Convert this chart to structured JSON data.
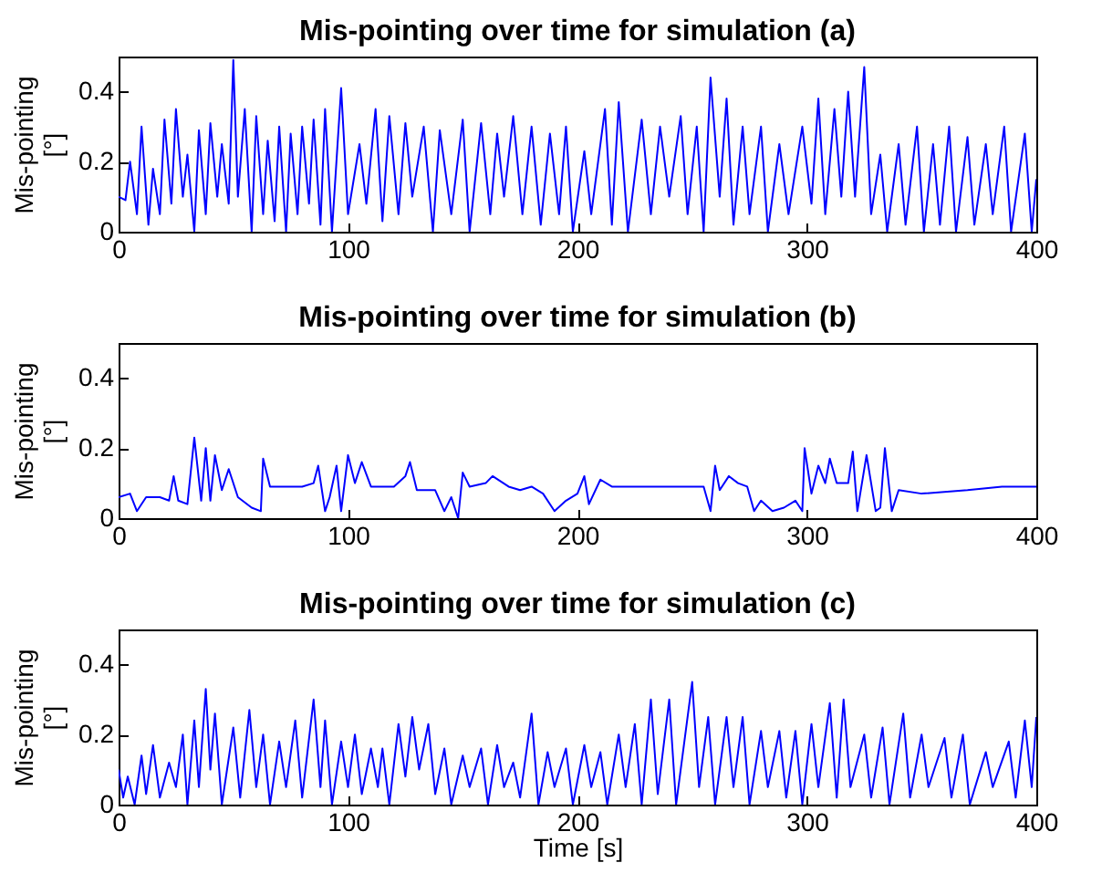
{
  "chart_data": [
    {
      "type": "line",
      "title": "Mis-pointing over time  for simulation (a)",
      "ylabel": "Mis-pointing [°]",
      "xlim": [
        0,
        400
      ],
      "xticks": [
        0,
        100,
        200,
        300,
        400
      ],
      "ylim": [
        0,
        0.5
      ],
      "yticks": [
        0,
        0.2,
        0.4
      ],
      "grid": false,
      "series": [
        {
          "color": "#0000ff",
          "x": [
            0,
            3,
            5,
            8,
            10,
            13,
            15,
            18,
            20,
            23,
            25,
            28,
            30,
            33,
            35,
            38,
            40,
            43,
            45,
            48,
            50,
            52,
            55,
            58,
            60,
            63,
            65,
            68,
            70,
            73,
            75,
            78,
            80,
            83,
            85,
            88,
            90,
            93,
            97,
            100,
            105,
            108,
            112,
            115,
            118,
            122,
            125,
            128,
            133,
            137,
            140,
            145,
            150,
            153,
            158,
            162,
            165,
            168,
            172,
            176,
            180,
            184,
            188,
            192,
            195,
            198,
            203,
            206,
            212,
            215,
            218,
            222,
            228,
            232,
            236,
            240,
            245,
            248,
            252,
            255,
            258,
            262,
            265,
            268,
            272,
            275,
            280,
            283,
            288,
            292,
            298,
            302,
            305,
            308,
            312,
            315,
            318,
            321,
            325,
            328,
            332,
            335,
            340,
            343,
            348,
            351,
            355,
            358,
            362,
            365,
            370,
            373,
            378,
            381,
            386,
            389,
            395,
            398,
            400
          ],
          "values": [
            0.1,
            0.09,
            0.2,
            0.05,
            0.3,
            0.02,
            0.18,
            0.05,
            0.32,
            0.08,
            0.35,
            0.1,
            0.22,
            0,
            0.29,
            0.05,
            0.31,
            0.1,
            0.25,
            0.08,
            0.49,
            0.1,
            0.35,
            0,
            0.33,
            0.05,
            0.26,
            0.03,
            0.3,
            0,
            0.28,
            0.05,
            0.3,
            0.08,
            0.32,
            0.02,
            0.35,
            0,
            0.41,
            0.05,
            0.25,
            0.08,
            0.35,
            0.03,
            0.33,
            0.05,
            0.31,
            0.1,
            0.3,
            0,
            0.29,
            0.05,
            0.32,
            0,
            0.31,
            0.05,
            0.28,
            0.1,
            0.33,
            0.05,
            0.3,
            0.02,
            0.28,
            0.05,
            0.3,
            0,
            0.23,
            0.05,
            0.35,
            0.02,
            0.37,
            0,
            0.32,
            0.05,
            0.3,
            0.1,
            0.33,
            0.05,
            0.3,
            0,
            0.44,
            0.1,
            0.38,
            0.02,
            0.3,
            0.05,
            0.3,
            0,
            0.25,
            0.05,
            0.3,
            0.08,
            0.38,
            0.05,
            0.35,
            0.1,
            0.4,
            0.1,
            0.47,
            0.05,
            0.22,
            0,
            0.25,
            0.02,
            0.3,
            0,
            0.25,
            0.02,
            0.3,
            0,
            0.27,
            0.02,
            0.25,
            0.05,
            0.3,
            0,
            0.28,
            0,
            0.15
          ]
        }
      ]
    },
    {
      "type": "line",
      "title": "Mis-pointing over time  for simulation (b)",
      "ylabel": "Mis-pointing [°]",
      "xlim": [
        0,
        400
      ],
      "xticks": [
        0,
        100,
        200,
        300,
        400
      ],
      "ylim": [
        0,
        0.5
      ],
      "yticks": [
        0,
        0.2,
        0.4
      ],
      "grid": false,
      "series": [
        {
          "color": "#0000ff",
          "x": [
            0,
            5,
            8,
            12,
            18,
            22,
            24,
            26,
            30,
            33,
            36,
            38,
            40,
            42,
            45,
            48,
            52,
            58,
            62,
            63,
            66,
            70,
            80,
            85,
            87,
            90,
            92,
            95,
            97,
            100,
            103,
            106,
            110,
            120,
            125,
            127,
            130,
            138,
            142,
            145,
            148,
            150,
            153,
            160,
            163,
            170,
            175,
            180,
            185,
            190,
            195,
            200,
            203,
            205,
            210,
            215,
            225,
            240,
            255,
            258,
            260,
            262,
            266,
            270,
            274,
            277,
            280,
            285,
            290,
            295,
            298,
            299,
            302,
            305,
            308,
            310,
            313,
            318,
            320,
            322,
            326,
            330,
            332,
            334,
            337,
            340,
            350,
            370,
            385,
            400
          ],
          "values": [
            0.06,
            0.07,
            0.02,
            0.06,
            0.06,
            0.05,
            0.12,
            0.05,
            0.04,
            0.23,
            0.05,
            0.2,
            0.05,
            0.18,
            0.08,
            0.14,
            0.06,
            0.03,
            0.02,
            0.17,
            0.09,
            0.09,
            0.09,
            0.1,
            0.15,
            0.02,
            0.06,
            0.15,
            0.02,
            0.18,
            0.1,
            0.16,
            0.09,
            0.09,
            0.12,
            0.16,
            0.08,
            0.08,
            0.02,
            0.06,
            0,
            0.13,
            0.09,
            0.1,
            0.12,
            0.09,
            0.08,
            0.09,
            0.07,
            0.02,
            0.05,
            0.07,
            0.12,
            0.04,
            0.11,
            0.09,
            0.09,
            0.09,
            0.09,
            0.02,
            0.15,
            0.08,
            0.12,
            0.1,
            0.09,
            0.02,
            0.05,
            0.02,
            0.03,
            0.05,
            0.02,
            0.2,
            0.07,
            0.15,
            0.1,
            0.17,
            0.1,
            0.1,
            0.19,
            0.02,
            0.18,
            0.02,
            0.03,
            0.2,
            0.02,
            0.08,
            0.07,
            0.08,
            0.09,
            0.09
          ]
        }
      ]
    },
    {
      "type": "line",
      "title": "Mis-pointing over time  for simulation (c)",
      "xlabel": "Time [s]",
      "ylabel": "Mis-pointing [°]",
      "xlim": [
        0,
        400
      ],
      "xticks": [
        0,
        100,
        200,
        300,
        400
      ],
      "ylim": [
        0,
        0.5
      ],
      "yticks": [
        0,
        0.2,
        0.4
      ],
      "grid": false,
      "series": [
        {
          "color": "#0000ff",
          "x": [
            0,
            2,
            4,
            7,
            10,
            12,
            15,
            18,
            22,
            25,
            28,
            30,
            33,
            35,
            38,
            40,
            42,
            45,
            50,
            53,
            57,
            60,
            63,
            66,
            70,
            73,
            77,
            80,
            85,
            88,
            90,
            93,
            97,
            100,
            103,
            106,
            110,
            113,
            115,
            118,
            122,
            125,
            128,
            131,
            135,
            138,
            142,
            145,
            150,
            153,
            158,
            161,
            165,
            168,
            172,
            175,
            180,
            183,
            187,
            190,
            195,
            198,
            203,
            206,
            210,
            213,
            218,
            221,
            225,
            228,
            232,
            235,
            240,
            243,
            250,
            253,
            257,
            260,
            265,
            268,
            272,
            275,
            280,
            283,
            288,
            291,
            295,
            298,
            302,
            305,
            310,
            313,
            316,
            319,
            325,
            328,
            333,
            336,
            342,
            345,
            350,
            353,
            360,
            363,
            368,
            371,
            378,
            381,
            388,
            391,
            395,
            398,
            400
          ],
          "values": [
            0.1,
            0.02,
            0.08,
            0,
            0.14,
            0.03,
            0.17,
            0.02,
            0.12,
            0.05,
            0.2,
            0,
            0.24,
            0.05,
            0.33,
            0.1,
            0.26,
            0,
            0.22,
            0.02,
            0.27,
            0.05,
            0.2,
            0,
            0.18,
            0.05,
            0.24,
            0.02,
            0.3,
            0.05,
            0.24,
            0,
            0.18,
            0.05,
            0.2,
            0.03,
            0.16,
            0.05,
            0.16,
            0,
            0.23,
            0.08,
            0.25,
            0.1,
            0.23,
            0.03,
            0.16,
            0,
            0.14,
            0.05,
            0.16,
            0,
            0.17,
            0.05,
            0.12,
            0.02,
            0.26,
            0,
            0.15,
            0.05,
            0.16,
            0,
            0.17,
            0.05,
            0.15,
            0,
            0.2,
            0.05,
            0.23,
            0,
            0.3,
            0.03,
            0.3,
            0,
            0.35,
            0.05,
            0.25,
            0,
            0.25,
            0.05,
            0.25,
            0,
            0.21,
            0.05,
            0.21,
            0.02,
            0.21,
            0,
            0.23,
            0.05,
            0.29,
            0.02,
            0.3,
            0.05,
            0.2,
            0.02,
            0.22,
            0,
            0.26,
            0.02,
            0.2,
            0.05,
            0.19,
            0.02,
            0.2,
            0,
            0.15,
            0.05,
            0.18,
            0.02,
            0.24,
            0.05,
            0.25
          ]
        }
      ]
    }
  ]
}
